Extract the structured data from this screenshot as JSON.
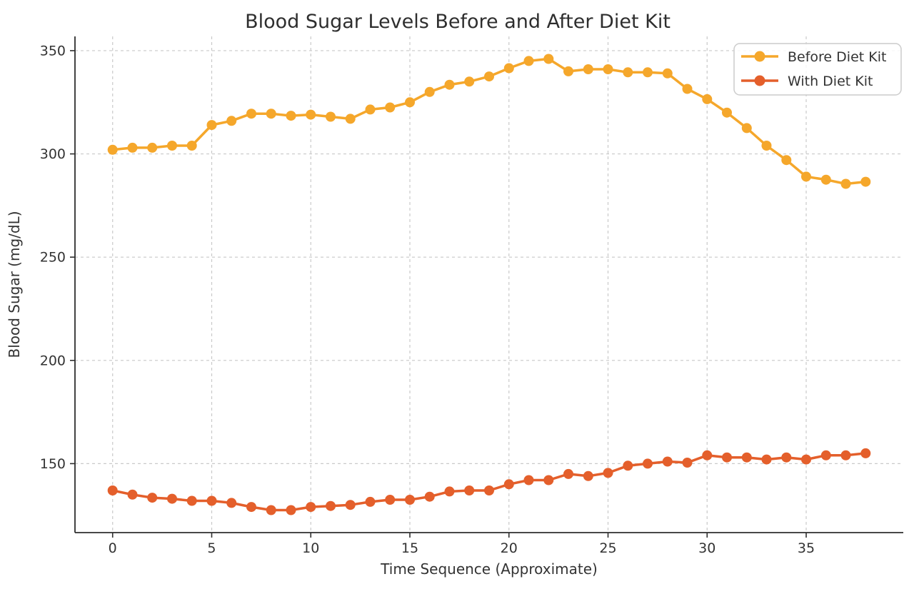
{
  "figure": {
    "background": "#ffffff"
  },
  "chart_data": {
    "type": "line",
    "title": "Blood Sugar Levels Before and After Diet Kit",
    "xlabel": "Time Sequence (Approximate)",
    "ylabel": "Blood Sugar (mg/dL)",
    "x": [
      0,
      1,
      2,
      3,
      4,
      5,
      6,
      7,
      8,
      9,
      10,
      11,
      12,
      13,
      14,
      15,
      16,
      17,
      18,
      19,
      20,
      21,
      22,
      23,
      24,
      25,
      26,
      27,
      28,
      29,
      30,
      31,
      32,
      33,
      34,
      35,
      36,
      37,
      38
    ],
    "series": [
      {
        "name": "Before Diet Kit",
        "color": "#F5A72B",
        "marker": "circle",
        "values": [
          302,
          303,
          303,
          304,
          304,
          314,
          316,
          319.5,
          319.5,
          318.5,
          319,
          318,
          317,
          321.5,
          322.5,
          325,
          330,
          333.5,
          335,
          337.5,
          341.5,
          345,
          346,
          340,
          341,
          341,
          339.5,
          339.5,
          339,
          331.5,
          326.5,
          320,
          312.5,
          304,
          297,
          289,
          287.5,
          285.5,
          286.5
        ]
      },
      {
        "name": "With Diet Kit",
        "color": "#E45F2B",
        "marker": "circle",
        "values": [
          137,
          135,
          133.5,
          133,
          132,
          132,
          131,
          129,
          127.5,
          127.5,
          129,
          129.5,
          130,
          131.5,
          132.5,
          132.5,
          134,
          136.5,
          137,
          137,
          140,
          142,
          142,
          145,
          144,
          145.5,
          149,
          150,
          151,
          150.5,
          154,
          153,
          153,
          152,
          153,
          152,
          154,
          154,
          155
        ]
      }
    ],
    "xticks": [
      0,
      5,
      10,
      15,
      20,
      25,
      30,
      35
    ],
    "yticks": [
      150,
      200,
      250,
      300,
      350
    ],
    "xlim": [
      -1.9,
      39.9
    ],
    "ylim": [
      116.6,
      356.9
    ],
    "grid": true,
    "grid_color": "#c9c9c9",
    "axis_color": "#2e2e2e",
    "text_color": "#333333",
    "legend_position": "upper right",
    "legend_border_color": "#cccccc",
    "legend_background": "#ffffff"
  }
}
